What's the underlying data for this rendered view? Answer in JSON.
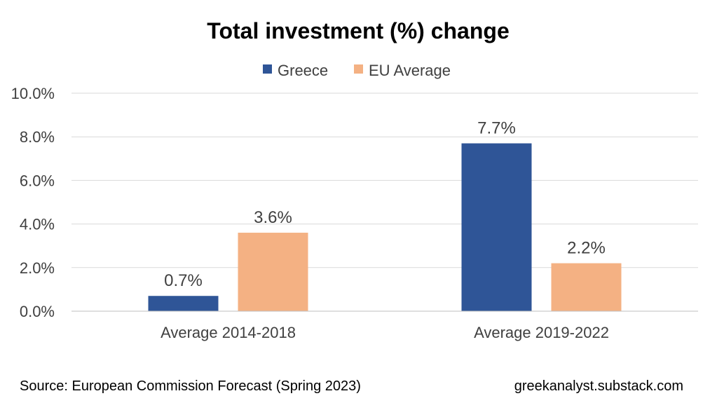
{
  "chart_data": {
    "type": "bar",
    "title": "Total investment (%) change",
    "categories": [
      "Average 2014-2018",
      "Average 2019-2022"
    ],
    "series": [
      {
        "name": "Greece",
        "values": [
          0.7,
          7.7
        ],
        "labels": [
          "0.7%",
          "7.7%"
        ],
        "color": "#2F5597"
      },
      {
        "name": "EU Average",
        "values": [
          3.6,
          2.2
        ],
        "labels": [
          "3.6%",
          "2.2%"
        ],
        "color": "#F4B183"
      }
    ],
    "ylim": [
      0,
      10
    ],
    "yticks": [
      "0.0%",
      "2.0%",
      "4.0%",
      "6.0%",
      "8.0%",
      "10.0%"
    ],
    "grid": true,
    "legend": "top-center"
  },
  "footer": {
    "source": "Source: European Commission Forecast (Spring 2023)",
    "credit": "greekanalyst.substack.com"
  },
  "colors": {
    "gridline": "#D9D9D9",
    "axis": "#BFBFBF",
    "text": "#404040"
  }
}
